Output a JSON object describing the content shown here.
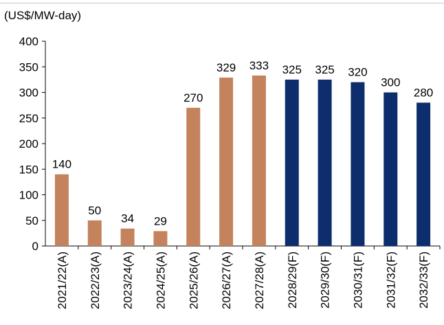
{
  "chart_data": {
    "type": "bar",
    "unit_label": "(US$/MW-day)",
    "categories": [
      "2021/22(A)",
      "2022/23(A)",
      "2023/24(A)",
      "2024/25(A)",
      "2025/26(A)",
      "2026/27(A)",
      "2027/28(A)",
      "2028/29(F)",
      "2029/30(F)",
      "2030/31(F)",
      "2031/32(F)",
      "2032/33(F)"
    ],
    "values": [
      140,
      50,
      34,
      29,
      270,
      329,
      333,
      325,
      325,
      320,
      300,
      280
    ],
    "bar_colors": [
      "#C4835C",
      "#C4835C",
      "#C4835C",
      "#C4835C",
      "#C4835C",
      "#C4835C",
      "#C4835C",
      "#0D2D6C",
      "#0D2D6C",
      "#0D2D6C",
      "#0D2D6C",
      "#0D2D6C"
    ],
    "ylim": [
      0,
      400
    ],
    "yticks": [
      0,
      50,
      100,
      150,
      200,
      250,
      300,
      350,
      400
    ],
    "grid": false,
    "data_labels": true
  }
}
